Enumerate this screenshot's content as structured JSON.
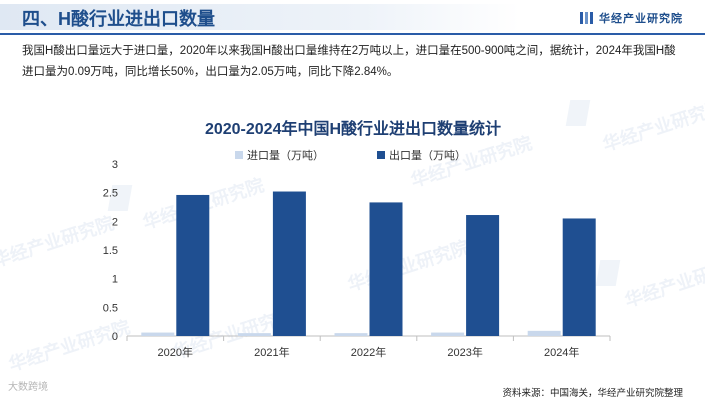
{
  "header": {
    "title": "四、H酸行业进出口数量",
    "brand": "华经产业研究院"
  },
  "intro": "我国H酸出口量远大于进口量，2020年以来我国H酸出口量维持在2万吨以上，进口量在500-900吨之间，据统计，2024年我国H酸进口量为0.09万吨，同比增长50%，出口量为2.05万吨，同比下降2.84%。",
  "watermark": "华经产业研究院",
  "corner_text": "大数跨境",
  "source": "资料来源：中国海关，华经产业研究院整理",
  "colors": {
    "accent": "#1e4e8c",
    "import": "#c9d8ec",
    "export": "#1f4f91"
  },
  "chart_data": {
    "type": "bar",
    "title": "2020-2024年中国H酸行业进出口数量统计",
    "categories": [
      "2020年",
      "2021年",
      "2022年",
      "2023年",
      "2024年"
    ],
    "series": [
      {
        "name": "进口量（万吨）",
        "values": [
          0.06,
          0.05,
          0.05,
          0.06,
          0.09
        ]
      },
      {
        "name": "出口量（万吨）",
        "values": [
          2.46,
          2.52,
          2.33,
          2.11,
          2.05
        ]
      }
    ],
    "ylim": [
      0,
      3
    ],
    "yticks": [
      "0",
      "0.5",
      "1",
      "1.5",
      "2",
      "2.5",
      "3"
    ],
    "grid": false,
    "legend": "top-center"
  }
}
